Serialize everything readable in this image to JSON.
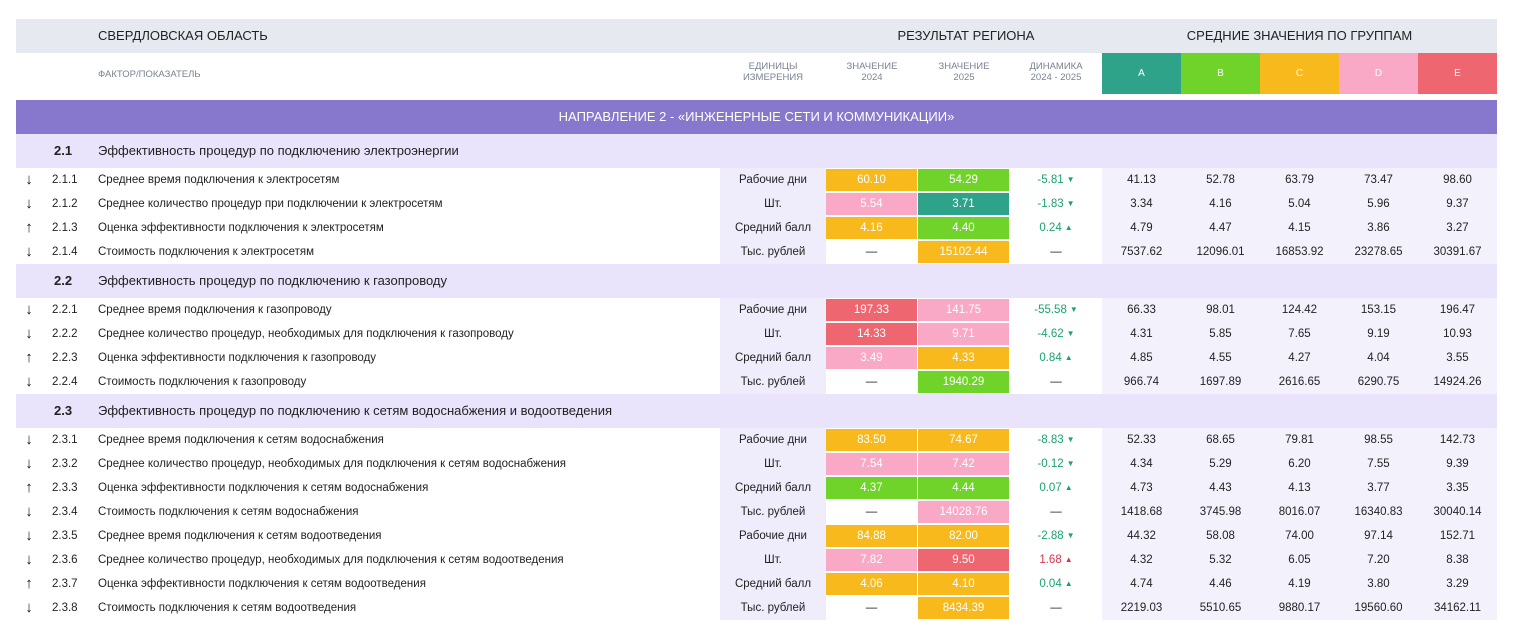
{
  "header": {
    "region": "СВЕРДЛОВСКАЯ ОБЛАСТЬ",
    "result": "РЕЗУЛЬТАТ РЕГИОНА",
    "groups_title": "СРЕДНИЕ ЗНАЧЕНИЯ ПО ГРУППАМ",
    "factor": "ФАКТОР/ПОКАЗАТЕЛЬ",
    "units_1": "ЕДИНИЦЫ",
    "units_2": "ИЗМЕРЕНИЯ",
    "v24_1": "ЗНАЧЕНИЕ",
    "v24_2": "2024",
    "v25_1": "ЗНАЧЕНИЕ",
    "v25_2": "2025",
    "dyn_1": "ДИНАМИКА",
    "dyn_2": "2024 - 2025",
    "groups": [
      {
        "label": "A",
        "color": "#2ea38a"
      },
      {
        "label": "B",
        "color": "#6fd32a"
      },
      {
        "label": "C",
        "color": "#f7b91c"
      },
      {
        "label": "D",
        "color": "#f9a8c6"
      },
      {
        "label": "E",
        "color": "#ee6670"
      }
    ]
  },
  "direction": "НАПРАВЛЕНИЕ 2 - «ИНЖЕНЕРНЫЕ СЕТИ И КОММУНИКАЦИИ»",
  "colors": {
    "A": "#2ea38a",
    "B": "#6fd32a",
    "C": "#f7b91c",
    "D": "#f9a8c6",
    "E": "#ee6670",
    "dyn_good": "#1aa36e",
    "dyn_bad": "#e0314a"
  },
  "sections": [
    {
      "num": "2.1",
      "title": "Эффективность процедур по подключению электроэнергии",
      "rows": [
        {
          "arrow": "down",
          "num": "2.1.1",
          "name": "Среднее время подключения к электросетям",
          "unit": "Рабочие дни",
          "v24": "60.10",
          "v24_grade": "C",
          "v25": "54.29",
          "v25_grade": "B",
          "dyn": "-5.81",
          "dyn_dir": "down",
          "dyn_state": "good",
          "g": [
            "41.13",
            "52.78",
            "63.79",
            "73.47",
            "98.60"
          ]
        },
        {
          "arrow": "down",
          "num": "2.1.2",
          "name": "Среднее количество процедур при подключении к электросетям",
          "unit": "Шт.",
          "v24": "5.54",
          "v24_grade": "D",
          "v25": "3.71",
          "v25_grade": "A",
          "dyn": "-1.83",
          "dyn_dir": "down",
          "dyn_state": "good",
          "g": [
            "3.34",
            "4.16",
            "5.04",
            "5.96",
            "9.37"
          ]
        },
        {
          "arrow": "up",
          "num": "2.1.3",
          "name": "Оценка эффективности подключения к электросетям",
          "unit": "Средний балл",
          "v24": "4.16",
          "v24_grade": "C",
          "v25": "4.40",
          "v25_grade": "B",
          "dyn": "0.24",
          "dyn_dir": "up",
          "dyn_state": "good",
          "g": [
            "4.79",
            "4.47",
            "4.15",
            "3.86",
            "3.27"
          ]
        },
        {
          "arrow": "down",
          "num": "2.1.4",
          "name": "Стоимость подключения к электросетям",
          "unit": "Тыс. рублей",
          "v24": "—",
          "v24_grade": "",
          "v25": "15102.44",
          "v25_grade": "C",
          "dyn": "—",
          "dyn_dir": "",
          "dyn_state": "",
          "g": [
            "7537.62",
            "12096.01",
            "16853.92",
            "23278.65",
            "30391.67"
          ]
        }
      ]
    },
    {
      "num": "2.2",
      "title": "Эффективность процедур по подключению к газопроводу",
      "rows": [
        {
          "arrow": "down",
          "num": "2.2.1",
          "name": "Среднее время подключения к газопроводу",
          "unit": "Рабочие дни",
          "v24": "197.33",
          "v24_grade": "E",
          "v25": "141.75",
          "v25_grade": "D",
          "dyn": "-55.58",
          "dyn_dir": "down",
          "dyn_state": "good",
          "g": [
            "66.33",
            "98.01",
            "124.42",
            "153.15",
            "196.47"
          ]
        },
        {
          "arrow": "down",
          "num": "2.2.2",
          "name": "Среднее количество процедур, необходимых для подключения к газопроводу",
          "unit": "Шт.",
          "v24": "14.33",
          "v24_grade": "E",
          "v25": "9.71",
          "v25_grade": "D",
          "dyn": "-4.62",
          "dyn_dir": "down",
          "dyn_state": "good",
          "g": [
            "4.31",
            "5.85",
            "7.65",
            "9.19",
            "10.93"
          ]
        },
        {
          "arrow": "up",
          "num": "2.2.3",
          "name": "Оценка эффективности подключения к газопроводу",
          "unit": "Средний балл",
          "v24": "3.49",
          "v24_grade": "D",
          "v25": "4.33",
          "v25_grade": "C",
          "dyn": "0.84",
          "dyn_dir": "up",
          "dyn_state": "good",
          "g": [
            "4.85",
            "4.55",
            "4.27",
            "4.04",
            "3.55"
          ]
        },
        {
          "arrow": "down",
          "num": "2.2.4",
          "name": "Стоимость подключения к газопроводу",
          "unit": "Тыс. рублей",
          "v24": "—",
          "v24_grade": "",
          "v25": "1940.29",
          "v25_grade": "B",
          "dyn": "—",
          "dyn_dir": "",
          "dyn_state": "",
          "g": [
            "966.74",
            "1697.89",
            "2616.65",
            "6290.75",
            "14924.26"
          ]
        }
      ]
    },
    {
      "num": "2.3",
      "title": "Эффективность процедур по подключению к сетям водоснабжения и водоотведения",
      "rows": [
        {
          "arrow": "down",
          "num": "2.3.1",
          "name": "Среднее время подключения к сетям водоснабжения",
          "unit": "Рабочие дни",
          "v24": "83.50",
          "v24_grade": "C",
          "v25": "74.67",
          "v25_grade": "C",
          "dyn": "-8.83",
          "dyn_dir": "down",
          "dyn_state": "good",
          "g": [
            "52.33",
            "68.65",
            "79.81",
            "98.55",
            "142.73"
          ]
        },
        {
          "arrow": "down",
          "num": "2.3.2",
          "name": "Среднее количество процедур, необходимых для подключения к сетям водоснабжения",
          "unit": "Шт.",
          "v24": "7.54",
          "v24_grade": "D",
          "v25": "7.42",
          "v25_grade": "D",
          "dyn": "-0.12",
          "dyn_dir": "down",
          "dyn_state": "good",
          "g": [
            "4.34",
            "5.29",
            "6.20",
            "7.55",
            "9.39"
          ]
        },
        {
          "arrow": "up",
          "num": "2.3.3",
          "name": "Оценка эффективности подключения к сетям водоснабжения",
          "unit": "Средний балл",
          "v24": "4.37",
          "v24_grade": "B",
          "v25": "4.44",
          "v25_grade": "B",
          "dyn": "0.07",
          "dyn_dir": "up",
          "dyn_state": "good",
          "g": [
            "4.73",
            "4.43",
            "4.13",
            "3.77",
            "3.35"
          ]
        },
        {
          "arrow": "down",
          "num": "2.3.4",
          "name": "Стоимость подключения к сетям водоснабжения",
          "unit": "Тыс. рублей",
          "v24": "—",
          "v24_grade": "",
          "v25": "14028.76",
          "v25_grade": "D",
          "dyn": "—",
          "dyn_dir": "",
          "dyn_state": "",
          "g": [
            "1418.68",
            "3745.98",
            "8016.07",
            "16340.83",
            "30040.14"
          ]
        },
        {
          "arrow": "down",
          "num": "2.3.5",
          "name": "Среднее время подключения к сетям водоотведения",
          "unit": "Рабочие дни",
          "v24": "84.88",
          "v24_grade": "C",
          "v25": "82.00",
          "v25_grade": "C",
          "dyn": "-2.88",
          "dyn_dir": "down",
          "dyn_state": "good",
          "g": [
            "44.32",
            "58.08",
            "74.00",
            "97.14",
            "152.71"
          ]
        },
        {
          "arrow": "down",
          "num": "2.3.6",
          "name": "Среднее количество процедур, необходимых для подключения к сетям водоотведения",
          "unit": "Шт.",
          "v24": "7.82",
          "v24_grade": "D",
          "v25": "9.50",
          "v25_grade": "E",
          "dyn": "1.68",
          "dyn_dir": "up",
          "dyn_state": "bad",
          "g": [
            "4.32",
            "5.32",
            "6.05",
            "7.20",
            "8.38"
          ]
        },
        {
          "arrow": "up",
          "num": "2.3.7",
          "name": "Оценка эффективности подключения к сетям водоотведения",
          "unit": "Средний балл",
          "v24": "4.06",
          "v24_grade": "C",
          "v25": "4.10",
          "v25_grade": "C",
          "dyn": "0.04",
          "dyn_dir": "up",
          "dyn_state": "good",
          "g": [
            "4.74",
            "4.46",
            "4.19",
            "3.80",
            "3.29"
          ]
        },
        {
          "arrow": "down",
          "num": "2.3.8",
          "name": "Стоимость подключения к сетям водоотведения",
          "unit": "Тыс. рублей",
          "v24": "—",
          "v24_grade": "",
          "v25": "8434.39",
          "v25_grade": "C",
          "dyn": "—",
          "dyn_dir": "",
          "dyn_state": "",
          "g": [
            "2219.03",
            "5510.65",
            "9880.17",
            "19560.60",
            "34162.11"
          ]
        }
      ]
    }
  ]
}
